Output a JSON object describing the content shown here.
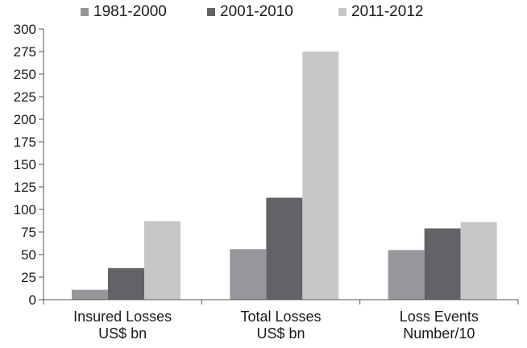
{
  "chart_data": {
    "type": "bar",
    "categories": [
      [
        "Insured Losses",
        "US$ bn"
      ],
      [
        "Total Losses",
        "US$ bn"
      ],
      [
        "Loss Events",
        "Number/10"
      ]
    ],
    "series": [
      {
        "name": "1981-2000",
        "color": "#96979b",
        "values": [
          11,
          56,
          55
        ]
      },
      {
        "name": "2001-2010",
        "color": "#626366",
        "values": [
          35,
          113,
          79
        ]
      },
      {
        "name": "2011-2012",
        "color": "#c6c7c9",
        "values": [
          87,
          275,
          86
        ]
      }
    ],
    "ylim": [
      0,
      300
    ],
    "yticks": [
      0,
      25,
      50,
      75,
      100,
      125,
      150,
      175,
      200,
      225,
      250,
      275,
      300
    ],
    "grid": false,
    "legend_position": "top"
  }
}
